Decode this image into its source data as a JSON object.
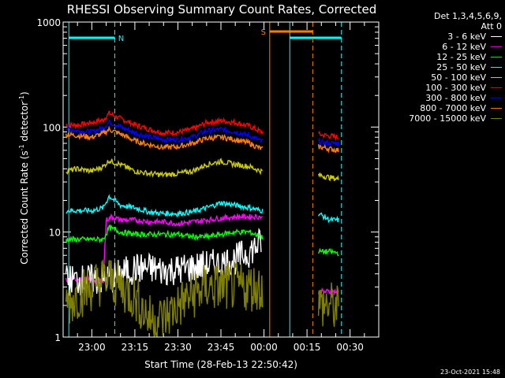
{
  "chart_data": {
    "type": "line",
    "title": "RHESSI Observing Summary Count Rates, Corrected",
    "ylabel_main": "Corrected Count Rate (s",
    "ylabel_sup1": "-1",
    "ylabel_mid": " detector",
    "ylabel_sup2": "-1",
    "ylabel_end": ")",
    "xlabel": "Start Time (28-Feb-13 22:50:42)",
    "yscale": "log",
    "ylim": [
      1,
      1000
    ],
    "xlim": [
      -10,
      100
    ],
    "y_ticks": [
      {
        "value": 1000,
        "label": "1000"
      },
      {
        "value": 100,
        "label": "100"
      },
      {
        "value": 10,
        "label": "10"
      },
      {
        "value": 1,
        "label": "1"
      }
    ],
    "x_ticks": [
      {
        "value": 0,
        "label": "23:00"
      },
      {
        "value": 15,
        "label": "23:15"
      },
      {
        "value": 30,
        "label": "23:30"
      },
      {
        "value": 45,
        "label": "23:45"
      },
      {
        "value": 60,
        "label": "00:00"
      },
      {
        "value": 75,
        "label": "00:15"
      },
      {
        "value": 90,
        "label": "00:30"
      }
    ],
    "legend": {
      "header1": "Det 1,3,4,5,6,9,",
      "header2": "Att 0",
      "entries": [
        {
          "label": "3 - 6 keV",
          "color": "#ffffff"
        },
        {
          "label": "6 - 12 keV",
          "color": "#ff00ff"
        },
        {
          "label": "12 - 25 keV",
          "color": "#00ff00"
        },
        {
          "label": "25 - 50 keV",
          "color": "#00ffff"
        },
        {
          "label": "50 - 100 keV",
          "color": "#cccc00"
        },
        {
          "label": "100 - 300 keV",
          "color": "#ff0000"
        },
        {
          "label": "300 - 800 keV",
          "color": "#0000ff"
        },
        {
          "label": "800 - 7000 keV",
          "color": "#ff8000"
        },
        {
          "label": "7000 - 15000 keV",
          "color": "#808000"
        }
      ]
    },
    "markers": [
      {
        "type": "night",
        "label": "N",
        "start": -8,
        "end": 8,
        "color": "#00ffff"
      },
      {
        "type": "night",
        "label": "",
        "start": 69,
        "end": 87,
        "color": "#00ffff"
      },
      {
        "type": "saa",
        "label": "S",
        "start": 62,
        "end": 77,
        "color": "#ff8000"
      }
    ],
    "data_gaps": [
      [
        59.5,
        79
      ]
    ],
    "series": [
      {
        "name": "100 - 300 keV",
        "color": "#ff0000",
        "x": [
          -9,
          -5,
          0,
          4,
          6,
          10,
          15,
          20,
          25,
          30,
          35,
          40,
          45,
          50,
          55,
          59,
          79,
          83,
          86
        ],
        "y": [
          105,
          104,
          110,
          117,
          135,
          120,
          105,
          95,
          88,
          89,
          95,
          110,
          115,
          110,
          102,
          90,
          85,
          82,
          80
        ]
      },
      {
        "name": "300 - 800 keV",
        "color": "#0000ff",
        "x": [
          -9,
          -5,
          0,
          4,
          6,
          10,
          15,
          20,
          25,
          30,
          35,
          40,
          45,
          50,
          55,
          59,
          79,
          83,
          86
        ],
        "y": [
          97,
          92,
          90,
          98,
          112,
          100,
          88,
          80,
          76,
          76,
          80,
          92,
          95,
          90,
          82,
          73,
          72,
          70,
          70
        ]
      },
      {
        "name": "800 - 7000 keV",
        "color": "#ff8000",
        "x": [
          -9,
          -5,
          0,
          4,
          6,
          10,
          15,
          20,
          25,
          30,
          35,
          40,
          45,
          50,
          55,
          59,
          79,
          83,
          86
        ],
        "y": [
          85,
          83,
          80,
          87,
          95,
          86,
          74,
          68,
          64,
          65,
          70,
          78,
          80,
          76,
          70,
          62,
          65,
          62,
          60
        ]
      },
      {
        "name": "50 - 100 keV",
        "color": "#cccc00",
        "x": [
          -9,
          -5,
          0,
          4,
          6,
          10,
          15,
          20,
          25,
          30,
          35,
          40,
          45,
          50,
          55,
          59,
          79,
          83,
          86
        ],
        "y": [
          38,
          40,
          38,
          42,
          48,
          44,
          38,
          36,
          35,
          36,
          38,
          44,
          47,
          44,
          42,
          38,
          35,
          33,
          32
        ]
      },
      {
        "name": "25 - 50 keV",
        "color": "#00ffff",
        "x": [
          -9,
          -5,
          0,
          4,
          6,
          10,
          15,
          20,
          25,
          30,
          35,
          40,
          45,
          50,
          55,
          59,
          79,
          83,
          86
        ],
        "y": [
          16,
          16,
          16,
          17,
          22,
          18,
          17,
          15.5,
          15,
          15,
          15.5,
          17,
          19,
          18,
          17,
          16,
          15,
          13,
          13
        ]
      },
      {
        "name": "6 - 12 keV",
        "color": "#ff00ff",
        "x": [
          -9,
          -5,
          0,
          4,
          5,
          7,
          10,
          15,
          20,
          25,
          30,
          35,
          40,
          45,
          50,
          55,
          59,
          79,
          83,
          86
        ],
        "y": [
          3.5,
          3.6,
          3.5,
          3.5,
          13,
          14,
          13,
          13,
          12.5,
          12.5,
          12,
          12.5,
          13,
          13.5,
          14,
          14,
          14,
          2.7,
          2.7,
          2.7
        ]
      },
      {
        "name": "12 - 25 keV",
        "color": "#00ff00",
        "x": [
          -9,
          -5,
          0,
          4,
          6,
          10,
          15,
          20,
          25,
          30,
          35,
          40,
          45,
          50,
          55,
          59,
          79,
          83,
          86
        ],
        "y": [
          8.5,
          8.5,
          8.5,
          8.5,
          11,
          10,
          9.5,
          9.5,
          9.5,
          9.5,
          9,
          9,
          9.5,
          10,
          10,
          9,
          6.5,
          6.5,
          6.3
        ]
      },
      {
        "name": "3 - 6 keV",
        "color": "#ffffff",
        "x": [
          -9,
          5,
          7,
          10,
          15,
          20,
          25,
          30,
          35,
          40,
          45,
          50,
          55,
          59
        ],
        "y": [
          3.5,
          3.5,
          3.6,
          4,
          4.5,
          4.5,
          4.3,
          4.4,
          4.6,
          4.8,
          5,
          5.5,
          6.5,
          8
        ]
      },
      {
        "name": "7000 - 15000 keV",
        "color": "#808000",
        "x": [
          -9,
          -5,
          0,
          4,
          6,
          10,
          15,
          20,
          25,
          30,
          35,
          40,
          45,
          50,
          55,
          59,
          79,
          83,
          86
        ],
        "y": [
          2,
          2.5,
          3,
          3.5,
          3.6,
          3,
          2.4,
          1.5,
          1.5,
          2,
          2.5,
          3,
          3,
          3,
          3,
          3,
          2,
          2,
          1.8
        ]
      }
    ]
  },
  "footer_date": "23-Oct-2021 15:48"
}
